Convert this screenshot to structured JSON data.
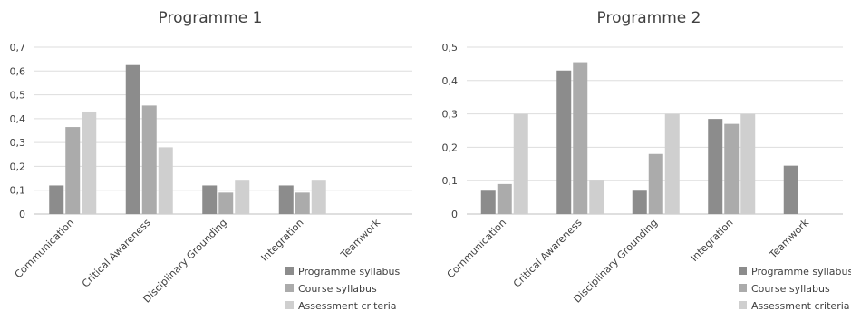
{
  "chart_data": [
    {
      "type": "bar",
      "title": "Programme 1",
      "categories": [
        "Communication",
        "Critical Awareness",
        "Disciplinary Grounding",
        "Integration",
        "Teamwork"
      ],
      "series": [
        {
          "name": "Programme syllabus",
          "values": [
            0.12,
            0.625,
            0.12,
            0.12,
            0
          ]
        },
        {
          "name": "Course syllabus",
          "values": [
            0.365,
            0.455,
            0.09,
            0.09,
            0
          ]
        },
        {
          "name": "Assessment criteria",
          "values": [
            0.43,
            0.28,
            0.14,
            0.14,
            0
          ]
        }
      ],
      "yticks": [
        "0",
        "0,1",
        "0,2",
        "0,3",
        "0,4",
        "0,5",
        "0,6",
        "0,7"
      ],
      "ylim": [
        0,
        0.7
      ],
      "grid": true,
      "legend": "bottom-right",
      "colors": [
        "#8c8c8c",
        "#ababab",
        "#cfcfcf"
      ]
    },
    {
      "type": "bar",
      "title": "Programme 2",
      "categories": [
        "Communication",
        "Critical Awareness",
        "Disciplinary Grounding",
        "Integration",
        "Teamwork"
      ],
      "series": [
        {
          "name": "Programme syllabus",
          "values": [
            0.07,
            0.43,
            0.07,
            0.285,
            0.145
          ]
        },
        {
          "name": "Course syllabus",
          "values": [
            0.09,
            0.455,
            0.18,
            0.27,
            0
          ]
        },
        {
          "name": "Assessment criteria",
          "values": [
            0.3,
            0.1,
            0.3,
            0.3,
            0
          ]
        }
      ],
      "yticks": [
        "0",
        "0,1",
        "0,2",
        "0,3",
        "0,4",
        "0,5"
      ],
      "ylim": [
        0,
        0.5
      ],
      "grid": true,
      "legend": "bottom-right",
      "colors": [
        "#8c8c8c",
        "#ababab",
        "#cfcfcf"
      ]
    }
  ]
}
